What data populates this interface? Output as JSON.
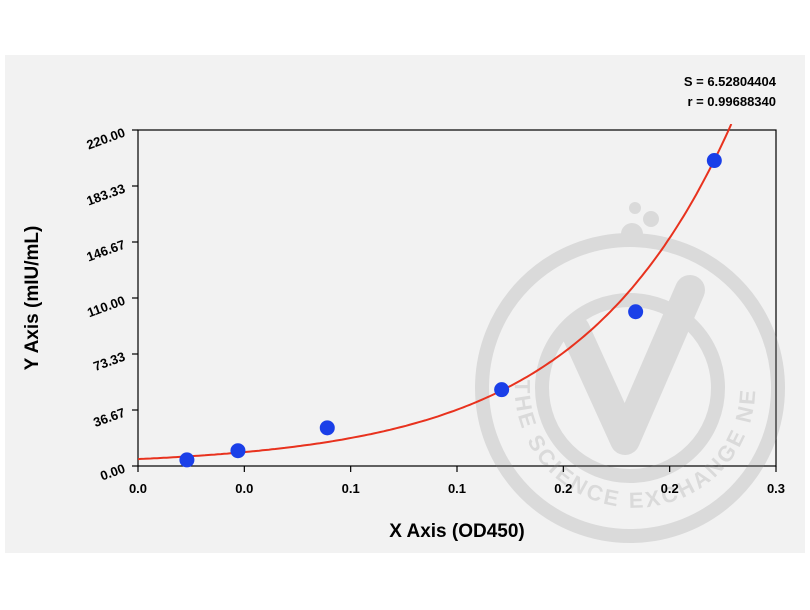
{
  "chart_data": {
    "type": "scatter",
    "title": "",
    "xlabel": "X Axis (OD450)",
    "ylabel": "Y Axis (mIU/mL)",
    "xlim": [
      0,
      0.3
    ],
    "ylim": [
      0,
      220
    ],
    "x_tick_labels": [
      "0.0",
      "0.0",
      "0.1",
      "0.1",
      "0.2",
      "0.2",
      "0.3"
    ],
    "y_tick_labels": [
      "0.00",
      "36.67",
      "73.33",
      "110.00",
      "146.67",
      "183.33",
      "220.00"
    ],
    "points": [
      {
        "x": 0.023,
        "y": 4
      },
      {
        "x": 0.047,
        "y": 10
      },
      {
        "x": 0.089,
        "y": 25
      },
      {
        "x": 0.171,
        "y": 50
      },
      {
        "x": 0.234,
        "y": 101
      },
      {
        "x": 0.271,
        "y": 200
      }
    ],
    "fit_curve": {
      "type": "exponential",
      "color": "#e8321e"
    },
    "point_color": "#1a3fe8",
    "stats": {
      "s_label": "S = 6.52804404",
      "r_label": "r = 0.99688340"
    },
    "grid": false,
    "legend": "none"
  },
  "watermark": {
    "text": "THE SCIENCE EXCHANGE NETWORK"
  }
}
